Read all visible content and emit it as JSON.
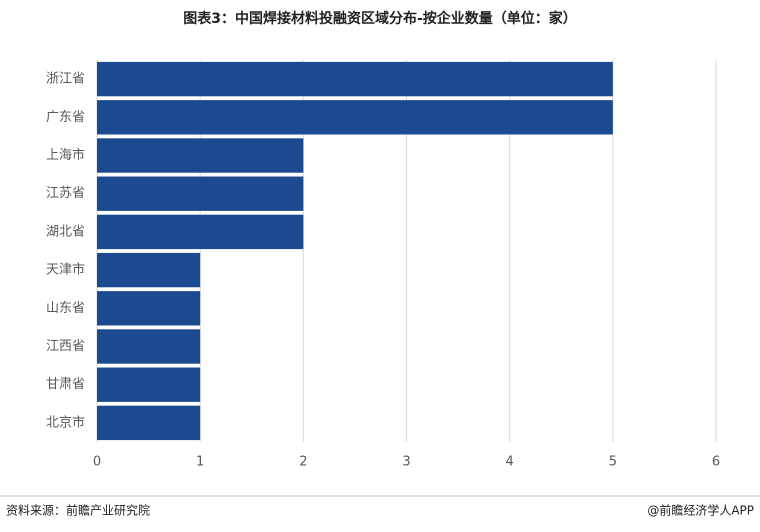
{
  "chart_data": {
    "type": "bar",
    "orientation": "horizontal",
    "title": "图表3：中国焊接材料投融资区域分布-按企业数量（单位：家）",
    "categories": [
      "浙江省",
      "广东省",
      "上海市",
      "江苏省",
      "湖北省",
      "天津市",
      "山东省",
      "江西省",
      "甘肃省",
      "北京市"
    ],
    "values": [
      5,
      5,
      2,
      2,
      2,
      1,
      1,
      1,
      1,
      1
    ],
    "color": "#1b4a91",
    "xlim": [
      0,
      6
    ],
    "xticks": [
      0,
      1,
      2,
      3,
      4,
      5,
      6
    ],
    "grid": true,
    "source": "资料来源：前瞻产业研究院",
    "credit": "@前瞻经济学人APP"
  }
}
